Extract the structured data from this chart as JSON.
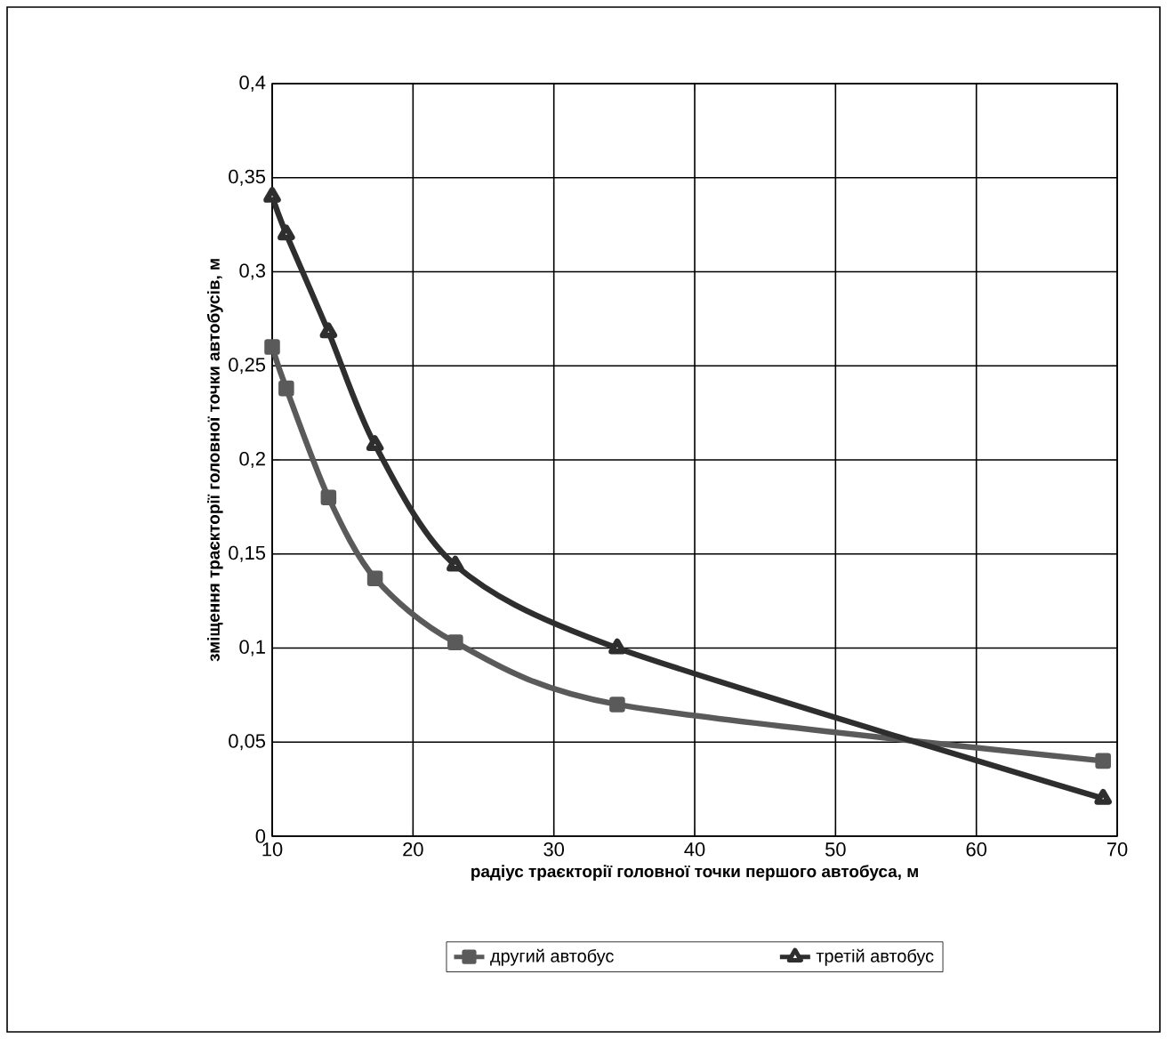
{
  "chart_data": {
    "type": "line",
    "xlabel": "радіус траєкторії головної точки першого автобуса, м",
    "ylabel": "зміщення траєкторії головної точки автобусів, м",
    "series": [
      {
        "name": "другий автобус",
        "color": "#5a5a5a",
        "marker": "square",
        "x": [
          10,
          11,
          14,
          17.3,
          23,
          34.5,
          69
        ],
        "values": [
          0.26,
          0.238,
          0.18,
          0.137,
          0.103,
          0.07,
          0.04
        ]
      },
      {
        "name": "третій автобус",
        "color": "#2e2e2e",
        "marker": "triangle",
        "x": [
          10,
          11,
          14,
          17.3,
          23,
          34.5,
          69
        ],
        "values": [
          0.34,
          0.32,
          0.268,
          0.208,
          0.144,
          0.1,
          0.02
        ]
      }
    ],
    "xlim": [
      10,
      70
    ],
    "xticks": [
      10,
      20,
      30,
      40,
      50,
      60,
      70
    ],
    "ylim": [
      0,
      0.4
    ],
    "yticks": [
      0,
      {
        "value": 0.05,
        "label": "0,05"
      },
      {
        "value": 0.1,
        "label": "0,1"
      },
      {
        "value": 0.15,
        "label": "0,15"
      },
      {
        "value": 0.2,
        "label": "0,2"
      },
      {
        "value": 0.25,
        "label": "0,25"
      },
      {
        "value": 0.3,
        "label": "0,3"
      },
      {
        "value": 0.35,
        "label": "0,35"
      },
      {
        "value": 0.4,
        "label": "0,4"
      }
    ],
    "grid": true,
    "legend": "bottom",
    "line_style": "solid"
  }
}
